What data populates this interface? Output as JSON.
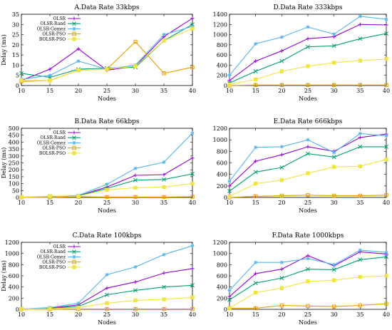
{
  "colors": {
    "OLSR": "#9400d3",
    "OLSR-Rand": "#009e73",
    "OLSR-Gomez": "#56b4e9",
    "OLSR-PSO": "#e69f00",
    "BOLSR-PSO": "#f0e442"
  },
  "chart_data": [
    {
      "type": "line",
      "title": "A.Data Rate 33kbps",
      "xlabel": "Nodes",
      "ylabel": "Delay (ms)",
      "x": [
        10,
        15,
        20,
        25,
        30,
        35,
        40
      ],
      "xticks": [
        "10",
        "15",
        "20",
        "25",
        "30",
        "35",
        "40"
      ],
      "xlim": [
        10,
        40
      ],
      "ylim": [
        0,
        35
      ],
      "yticks": [
        "0",
        "5",
        "10",
        "15",
        "20",
        "25",
        "30",
        "35"
      ],
      "legend": "top-left",
      "series": [
        {
          "name": "OLSR",
          "marker": "plus",
          "values": [
            2.5,
            8,
            18,
            7.5,
            9.5,
            24,
            33
          ]
        },
        {
          "name": "OLSR-Rand",
          "marker": "x",
          "values": [
            6,
            4,
            8,
            8.5,
            9,
            22,
            30
          ]
        },
        {
          "name": "OLSR-Gomez",
          "marker": "star",
          "values": [
            3,
            5,
            12,
            8,
            10,
            25,
            29
          ]
        },
        {
          "name": "OLSR-PSO",
          "marker": "square",
          "values": [
            2,
            2.5,
            7.5,
            8,
            21.5,
            6,
            9
          ]
        },
        {
          "name": "BOLSR-PSO",
          "marker": "filled-square",
          "values": [
            2.5,
            2.5,
            7.5,
            8,
            9.5,
            22,
            28
          ]
        }
      ]
    },
    {
      "type": "line",
      "title": "D.Data Rate 333kbps",
      "xlabel": "Nodes",
      "ylabel": "",
      "x": [
        10,
        15,
        20,
        25,
        30,
        35,
        40
      ],
      "xticks": [
        "10",
        "15",
        "20",
        "25",
        "30",
        "35",
        "40"
      ],
      "xlim": [
        10,
        40
      ],
      "ylim": [
        0,
        1400
      ],
      "yticks": [
        "0",
        "200",
        "400",
        "600",
        "800",
        "1000",
        "1200",
        "1400"
      ],
      "legend": "none",
      "series": [
        {
          "name": "OLSR",
          "marker": "plus",
          "values": [
            100,
            480,
            680,
            920,
            960,
            1200,
            1190
          ]
        },
        {
          "name": "OLSR-Rand",
          "marker": "x",
          "values": [
            50,
            280,
            480,
            760,
            780,
            920,
            1020
          ]
        },
        {
          "name": "OLSR-Gomez",
          "marker": "star",
          "values": [
            200,
            820,
            950,
            1150,
            1010,
            1360,
            1300
          ]
        },
        {
          "name": "OLSR-PSO",
          "marker": "square",
          "values": [
            0,
            10,
            10,
            10,
            10,
            10,
            10
          ]
        },
        {
          "name": "BOLSR-PSO",
          "marker": "filled-square",
          "values": [
            20,
            120,
            280,
            380,
            450,
            490,
            520
          ]
        }
      ]
    },
    {
      "type": "line",
      "title": "B.Data Rate 66kbps",
      "xlabel": "Nodes",
      "ylabel": "Delay (ms)",
      "x": [
        10,
        15,
        20,
        25,
        30,
        35,
        40
      ],
      "xticks": [
        "10",
        "15",
        "20",
        "25",
        "30",
        "35",
        "40"
      ],
      "xlim": [
        10,
        40
      ],
      "ylim": [
        0,
        500
      ],
      "yticks": [
        "0",
        "50",
        "100",
        "150",
        "200",
        "250",
        "300",
        "350",
        "400",
        "450",
        "500"
      ],
      "legend": "top-left",
      "series": [
        {
          "name": "OLSR",
          "marker": "plus",
          "values": [
            2,
            5,
            12,
            75,
            160,
            165,
            285
          ]
        },
        {
          "name": "OLSR-Rand",
          "marker": "x",
          "values": [
            2,
            5,
            12,
            65,
            125,
            130,
            170
          ]
        },
        {
          "name": "OLSR-Gomez",
          "marker": "star",
          "values": [
            2,
            5,
            15,
            95,
            210,
            255,
            465
          ]
        },
        {
          "name": "OLSR-PSO",
          "marker": "square",
          "values": [
            0,
            0,
            5,
            3,
            3,
            3,
            5
          ]
        },
        {
          "name": "BOLSR-PSO",
          "marker": "filled-square",
          "values": [
            2,
            10,
            10,
            55,
            70,
            75,
            100
          ]
        }
      ]
    },
    {
      "type": "line",
      "title": "E.Data Rate 666kbps",
      "xlabel": "Nodes",
      "ylabel": "",
      "x": [
        10,
        15,
        20,
        25,
        30,
        35,
        40
      ],
      "xticks": [
        "10",
        "15",
        "20",
        "25",
        "30",
        "35",
        "40"
      ],
      "xlim": [
        10,
        40
      ],
      "ylim": [
        0,
        1200
      ],
      "yticks": [
        "0",
        "200",
        "400",
        "600",
        "800",
        "1000",
        "1200"
      ],
      "legend": "none",
      "series": [
        {
          "name": "OLSR",
          "marker": "plus",
          "values": [
            200,
            630,
            740,
            880,
            800,
            1040,
            1100
          ]
        },
        {
          "name": "OLSR-Rand",
          "marker": "x",
          "values": [
            110,
            440,
            520,
            760,
            700,
            880,
            880
          ]
        },
        {
          "name": "OLSR-Gomez",
          "marker": "star",
          "values": [
            280,
            870,
            880,
            1000,
            780,
            1110,
            1070
          ]
        },
        {
          "name": "OLSR-PSO",
          "marker": "square",
          "values": [
            0,
            20,
            30,
            40,
            30,
            30,
            40
          ]
        },
        {
          "name": "BOLSR-PSO",
          "marker": "filled-square",
          "values": [
            20,
            240,
            300,
            420,
            530,
            540,
            660
          ]
        }
      ]
    },
    {
      "type": "line",
      "title": "C.Data Rate 100kbps",
      "xlabel": "Nodes",
      "ylabel": "Delay (ms)",
      "x": [
        10,
        15,
        20,
        25,
        30,
        35,
        40
      ],
      "xticks": [
        "10",
        "15",
        "20",
        "25",
        "30",
        "35",
        "40"
      ],
      "xlim": [
        10,
        40
      ],
      "ylim": [
        0,
        1200
      ],
      "yticks": [
        "0",
        "200",
        "400",
        "600",
        "800",
        "1000",
        "1200"
      ],
      "legend": "top-left",
      "series": [
        {
          "name": "OLSR",
          "marker": "plus",
          "values": [
            5,
            20,
            80,
            380,
            490,
            650,
            730
          ]
        },
        {
          "name": "OLSR-Rand",
          "marker": "x",
          "values": [
            5,
            20,
            50,
            260,
            340,
            400,
            430
          ]
        },
        {
          "name": "OLSR-Gomez",
          "marker": "star",
          "values": [
            5,
            30,
            110,
            620,
            760,
            980,
            1140
          ]
        },
        {
          "name": "OLSR-PSO",
          "marker": "square",
          "values": [
            0,
            0,
            5,
            5,
            5,
            5,
            5
          ]
        },
        {
          "name": "BOLSR-PSO",
          "marker": "filled-square",
          "values": [
            5,
            10,
            30,
            110,
            160,
            180,
            215
          ]
        }
      ]
    },
    {
      "type": "line",
      "title": "F.Data Rate 1000kbps",
      "xlabel": "Nodes",
      "ylabel": "",
      "x": [
        10,
        15,
        20,
        25,
        30,
        35,
        40
      ],
      "xticks": [
        "10",
        "15",
        "20",
        "25",
        "30",
        "35",
        "40"
      ],
      "xlim": [
        10,
        40
      ],
      "ylim": [
        0,
        1200
      ],
      "yticks": [
        "0",
        "200",
        "400",
        "600",
        "800",
        "1000",
        "1200"
      ],
      "legend": "none",
      "series": [
        {
          "name": "OLSR",
          "marker": "plus",
          "values": [
            230,
            640,
            720,
            960,
            780,
            1030,
            990
          ]
        },
        {
          "name": "OLSR-Rand",
          "marker": "x",
          "values": [
            170,
            470,
            560,
            720,
            710,
            890,
            940
          ]
        },
        {
          "name": "OLSR-Gomez",
          "marker": "star",
          "values": [
            340,
            840,
            840,
            910,
            800,
            1060,
            1020
          ]
        },
        {
          "name": "OLSR-PSO",
          "marker": "square",
          "values": [
            20,
            20,
            70,
            60,
            50,
            70,
            100
          ]
        },
        {
          "name": "BOLSR-PSO",
          "marker": "filled-square",
          "values": [
            20,
            300,
            380,
            500,
            520,
            580,
            600
          ]
        }
      ]
    }
  ]
}
